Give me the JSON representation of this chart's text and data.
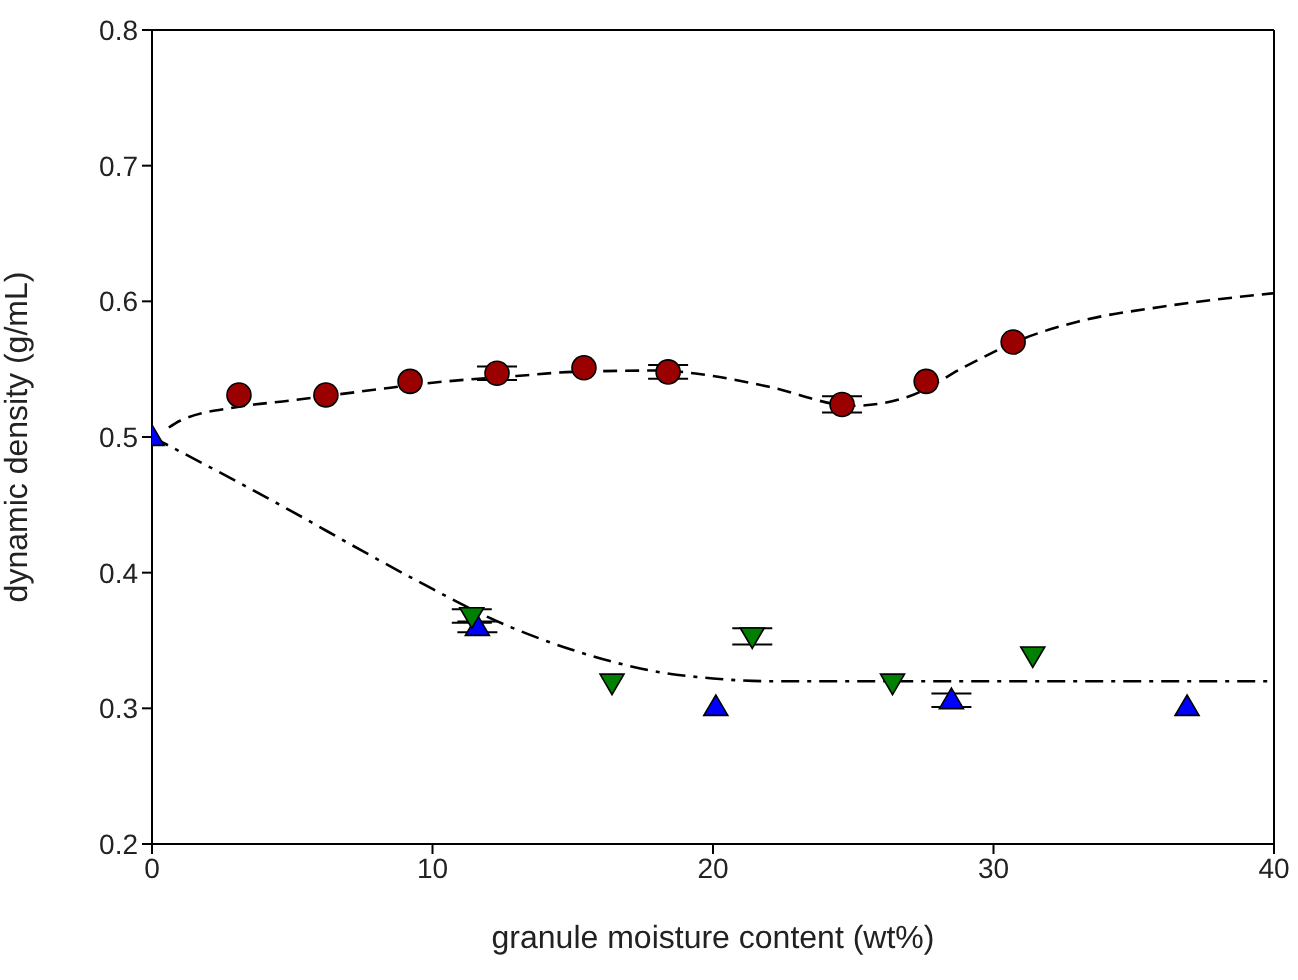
{
  "chart_data": {
    "type": "scatter",
    "xlabel": "granule moisture content  (wt%)",
    "ylabel": "dynamic density  (g/mL)",
    "xlim": [
      0,
      40
    ],
    "xticks": [
      0,
      10,
      20,
      30,
      40
    ],
    "ylim": [
      0.2,
      0.8
    ],
    "yticks": [
      0.2,
      0.3,
      0.4,
      0.5,
      0.6,
      0.7,
      0.8
    ],
    "grid": false,
    "series": [
      {
        "marker": "circle",
        "color": "#9b0000",
        "x": [
          3.1,
          6.2,
          9.2,
          12.3,
          15.4,
          18.4,
          24.6,
          27.6,
          30.7
        ],
        "values": [
          0.531,
          0.531,
          0.541,
          0.547,
          0.551,
          0.548,
          0.524,
          0.541,
          0.57
        ],
        "errors": [
          null,
          null,
          null,
          0.005,
          null,
          0.005,
          0.006,
          null,
          null
        ]
      },
      {
        "marker": "triangle",
        "color": "#0000ff",
        "x": [
          0,
          11.6,
          20.1,
          28.5,
          36.9
        ],
        "values": [
          0.5,
          0.36,
          0.301,
          0.306,
          0.301
        ],
        "errors": [
          null,
          0.004,
          null,
          0.005,
          null
        ]
      },
      {
        "marker": "triangle-down",
        "color": "#008000",
        "x": [
          11.4,
          16.4,
          21.4,
          26.4,
          31.4
        ],
        "values": [
          0.368,
          0.319,
          0.353,
          0.319,
          0.339
        ],
        "errors": [
          0.005,
          null,
          0.006,
          null,
          null
        ]
      },
      {
        "type": "line",
        "marker": "none",
        "line_style": "dashed",
        "color": "#000000",
        "x": [
          0.6,
          1,
          3,
          5,
          8,
          10,
          13,
          15,
          18,
          20,
          22,
          25,
          27,
          29,
          31,
          33,
          36,
          40
        ],
        "values": [
          0.507,
          0.512,
          0.522,
          0.527,
          0.535,
          0.54,
          0.545,
          0.548,
          0.549,
          0.545,
          0.537,
          0.523,
          0.53,
          0.552,
          0.572,
          0.585,
          0.596,
          0.606
        ]
      },
      {
        "type": "line",
        "marker": "none",
        "line_style": "dashdot",
        "color": "#000000",
        "x": [
          0,
          2.5,
          5,
          7.5,
          10,
          12,
          15,
          18,
          20,
          22,
          25,
          30,
          40
        ],
        "values": [
          0.5,
          0.473,
          0.445,
          0.416,
          0.388,
          0.367,
          0.343,
          0.327,
          0.322,
          0.32,
          0.32,
          0.32,
          0.32
        ]
      }
    ]
  }
}
